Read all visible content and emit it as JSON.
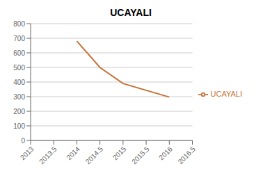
{
  "chart_data": {
    "type": "line",
    "title": "UCAYALI",
    "x": [
      2014,
      2014.5,
      2015,
      2016
    ],
    "series": [
      {
        "name": "UCAYALI",
        "color": "#C87137",
        "values": [
          680,
          500,
          390,
          297
        ]
      }
    ],
    "xlim": [
      2013,
      2016.5
    ],
    "ylim": [
      0,
      800
    ],
    "xticks": [
      2013,
      2013.5,
      2014,
      2014.5,
      2015,
      2015.5,
      2016,
      2016.5
    ],
    "yticks": [
      0,
      100,
      200,
      300,
      400,
      500,
      600,
      700,
      800
    ],
    "grid": true,
    "legend": "right"
  }
}
